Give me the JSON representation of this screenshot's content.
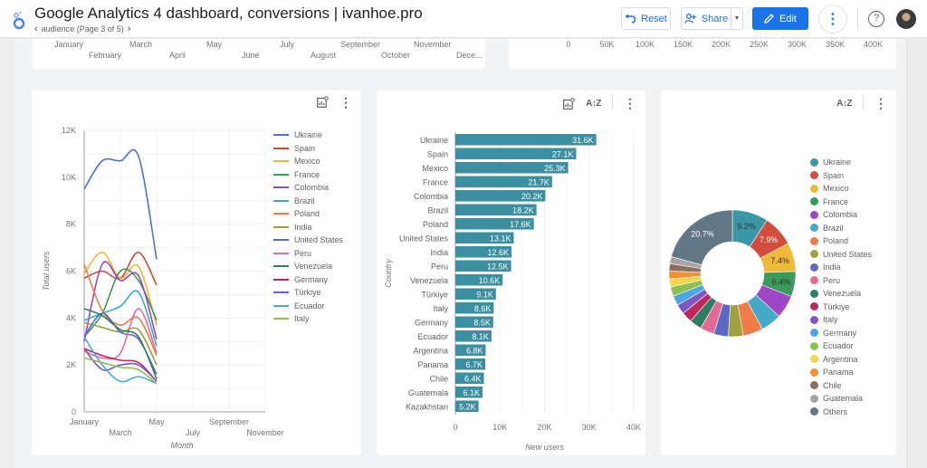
{
  "header": {
    "title": "Google Analytics 4 dashboard, conversions | ivanhoe.pro",
    "page_nav": "audience (Page 3 of 5)",
    "prev_icon": "chevron-left-icon",
    "next_icon": "chevron-right-icon",
    "buttons": {
      "reset": "Reset",
      "share": "Share",
      "edit": "Edit"
    },
    "help_glyph": "?",
    "colors": {
      "accent": "#1a73e8"
    }
  },
  "top_left_axis": {
    "row1": [
      "January",
      "March",
      "May",
      "July",
      "September",
      "November"
    ],
    "row2": [
      "February",
      "April",
      "June",
      "August",
      "October",
      "Dece..."
    ]
  },
  "top_right_axis": {
    "ticks": [
      "0",
      "50K",
      "100K",
      "150K",
      "200K",
      "250K",
      "300K",
      "350K",
      "400K"
    ]
  },
  "chart_data": [
    {
      "type": "line",
      "title": "",
      "xlabel": "Month",
      "ylabel": "Total users",
      "ylim": [
        0,
        12000
      ],
      "yticks": [
        "0",
        "2K",
        "4K",
        "6K",
        "8K",
        "10K",
        "12K"
      ],
      "xticks_row1": [
        "January",
        "May",
        "September"
      ],
      "xticks_row2": [
        "March",
        "July",
        "November"
      ],
      "x": [
        "January",
        "February",
        "March",
        "April",
        "May"
      ],
      "legend": "right",
      "grid": true,
      "series": [
        {
          "name": "Ukraine",
          "color": "#4a72d8",
          "values": [
            9500,
            10700,
            10700,
            10900,
            6500
          ]
        },
        {
          "name": "Spain",
          "color": "#d2483b",
          "values": [
            5700,
            6000,
            5700,
            6800,
            5400
          ]
        },
        {
          "name": "Mexico",
          "color": "#f1b52e",
          "values": [
            5900,
            6800,
            5700,
            6200,
            3700
          ]
        },
        {
          "name": "France",
          "color": "#3a9a5b",
          "values": [
            3200,
            4200,
            6000,
            5600,
            3900
          ]
        },
        {
          "name": "Colombia",
          "color": "#9b45c6",
          "values": [
            3000,
            6300,
            5600,
            5800,
            3100
          ]
        },
        {
          "name": "Brazil",
          "color": "#3ba9c9",
          "values": [
            3900,
            4200,
            4500,
            5100,
            2800
          ]
        },
        {
          "name": "Poland",
          "color": "#ee7a45",
          "values": [
            6300,
            4300,
            3700,
            4000,
            2400
          ]
        },
        {
          "name": "India",
          "color": "#9ca03a",
          "values": [
            3800,
            3600,
            3400,
            3500,
            2000
          ]
        },
        {
          "name": "United States",
          "color": "#5b68c6",
          "values": [
            3200,
            4200,
            3400,
            3100,
            1600
          ]
        },
        {
          "name": "Peru",
          "color": "#e36b96",
          "values": [
            2600,
            2300,
            2500,
            4400,
            2500
          ]
        },
        {
          "name": "Venezuela",
          "color": "#2e7d64",
          "values": [
            4400,
            4100,
            3500,
            3200,
            1400
          ]
        },
        {
          "name": "Germany",
          "color": "#c0265a",
          "values": [
            2700,
            2400,
            2200,
            2100,
            1300
          ]
        },
        {
          "name": "Türkiye",
          "color": "#7e57c2",
          "values": [
            2700,
            1800,
            2000,
            2000,
            1300
          ]
        },
        {
          "name": "Ecuador",
          "color": "#49a6e9",
          "values": [
            3200,
            2000,
            1300,
            1500,
            1200
          ]
        },
        {
          "name": "Italy",
          "color": "#8cc152",
          "values": [
            2300,
            2100,
            1900,
            1800,
            1200
          ]
        }
      ]
    },
    {
      "type": "bar",
      "orientation": "horizontal",
      "title": "",
      "xlabel": "New users",
      "ylabel": "Country",
      "xlim": [
        0,
        40000
      ],
      "xticks": [
        "0",
        "10K",
        "20K",
        "30K",
        "40K"
      ],
      "bar_color": "#3b8fa1",
      "categories": [
        "Ukraine",
        "Spain",
        "Mexico",
        "France",
        "Colombia",
        "Brazil",
        "Poland",
        "United States",
        "India",
        "Peru",
        "Venezuela",
        "Türkiye",
        "Italy",
        "Germany",
        "Ecuador",
        "Argentina",
        "Panama",
        "Chile",
        "Guatemala",
        "Kazakhstan"
      ],
      "values": [
        31600,
        27100,
        25300,
        21700,
        20200,
        18200,
        17600,
        13100,
        12600,
        12500,
        10600,
        9100,
        8600,
        8500,
        8100,
        6800,
        6700,
        6400,
        6100,
        5200
      ],
      "labels": [
        "31.6K",
        "27.1K",
        "25.3K",
        "21.7K",
        "20.2K",
        "18.2K",
        "17.6K",
        "13.1K",
        "12.6K",
        "12.5K",
        "10.6K",
        "9.1K",
        "8.6K",
        "8.5K",
        "8.1K",
        "6.8K",
        "6.7K",
        "6.4K",
        "6.1K",
        "5.2K"
      ],
      "grid": true
    },
    {
      "type": "pie",
      "variant": "donut",
      "title": "",
      "legend": "right",
      "slices": [
        {
          "name": "Ukraine",
          "color": "#3b97a6",
          "value": 9.2,
          "label": "9.2%"
        },
        {
          "name": "Spain",
          "color": "#d44c3c",
          "value": 7.9,
          "label": "7.9%"
        },
        {
          "name": "Mexico",
          "color": "#f0b93a",
          "value": 7.4,
          "label": "7.4%"
        },
        {
          "name": "France",
          "color": "#3a9a5b",
          "value": 6.4,
          "label": "6.4%"
        },
        {
          "name": "Colombia",
          "color": "#a047c8",
          "value": 5.9,
          "label": ""
        },
        {
          "name": "Brazil",
          "color": "#42aac6",
          "value": 5.3,
          "label": ""
        },
        {
          "name": "Poland",
          "color": "#f07c48",
          "value": 5.1,
          "label": ""
        },
        {
          "name": "United States",
          "color": "#9ea23c",
          "value": 3.8,
          "label": ""
        },
        {
          "name": "India",
          "color": "#5b68c6",
          "value": 3.7,
          "label": ""
        },
        {
          "name": "Peru",
          "color": "#e36b96",
          "value": 3.6,
          "label": ""
        },
        {
          "name": "Venezuela",
          "color": "#2e7d64",
          "value": 3.1,
          "label": ""
        },
        {
          "name": "Türkiye",
          "color": "#c0265a",
          "value": 2.7,
          "label": ""
        },
        {
          "name": "Italy",
          "color": "#7e57c2",
          "value": 2.5,
          "label": ""
        },
        {
          "name": "Germany",
          "color": "#49a6e9",
          "value": 2.5,
          "label": ""
        },
        {
          "name": "Ecuador",
          "color": "#8cc152",
          "value": 2.4,
          "label": ""
        },
        {
          "name": "Argentina",
          "color": "#f6d648",
          "value": 2.0,
          "label": ""
        },
        {
          "name": "Panama",
          "color": "#f39234",
          "value": 2.0,
          "label": ""
        },
        {
          "name": "Chile",
          "color": "#8d6e63",
          "value": 1.9,
          "label": ""
        },
        {
          "name": "Guatemala",
          "color": "#a5a5a5",
          "value": 1.8,
          "label": ""
        },
        {
          "name": "Others",
          "color": "#627785",
          "value": 20.7,
          "label": "20.7%"
        }
      ]
    }
  ]
}
